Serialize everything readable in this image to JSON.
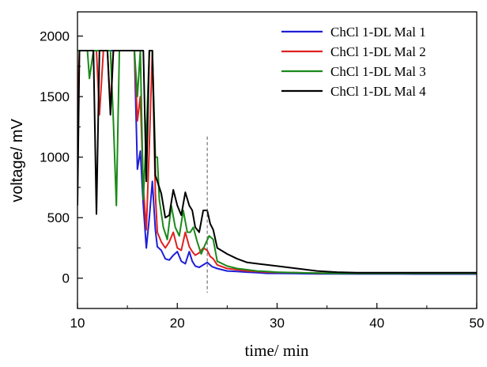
{
  "chart_data": {
    "type": "line",
    "title": "",
    "xlabel": "time/ min",
    "ylabel": "voltage/ mV",
    "xlim": [
      10,
      50
    ],
    "ylim": [
      -250,
      2200
    ],
    "xticks": [
      10,
      20,
      30,
      40,
      50
    ],
    "xtick_labels": [
      "10",
      "20",
      "30",
      "40",
      "50"
    ],
    "yticks": [
      0,
      500,
      1000,
      1500,
      2000
    ],
    "ytick_labels": [
      "0",
      "500",
      "1000",
      "1500",
      "2000"
    ],
    "grid": false,
    "legend": "top-right",
    "reference_line": {
      "x": 23,
      "y_from": -120,
      "y_to": 1170,
      "style": "dashed"
    },
    "series": [
      {
        "name": "ChCl 1-DL Mal 1",
        "color": "#1f1fd6",
        "x": [
          10,
          10.3,
          11.2,
          11.6,
          11.9,
          12.2,
          12.6,
          13.0,
          13.3,
          13.6,
          13.9,
          14.2,
          14.6,
          15.2,
          15.7,
          16.0,
          16.3,
          16.6,
          16.9,
          17.2,
          17.5,
          17.8,
          18.0,
          18.4,
          18.8,
          19.2,
          19.6,
          20.0,
          20.4,
          20.8,
          21.2,
          21.5,
          21.8,
          22.2,
          22.6,
          23.0,
          23.5,
          24,
          25,
          26,
          27,
          28,
          29,
          30,
          32,
          34,
          36,
          38,
          40,
          42,
          44,
          46,
          48,
          50
        ],
        "y": [
          1880,
          1880,
          1880,
          1880,
          1880,
          1880,
          1880,
          1880,
          1880,
          1880,
          1880,
          1880,
          1880,
          1880,
          1880,
          900,
          1050,
          600,
          250,
          500,
          800,
          400,
          260,
          230,
          160,
          150,
          190,
          220,
          140,
          120,
          220,
          140,
          100,
          90,
          110,
          130,
          95,
          80,
          60,
          55,
          50,
          45,
          40,
          40,
          38,
          36,
          36,
          35,
          35,
          35,
          34,
          34,
          34,
          34
        ]
      },
      {
        "name": "ChCl 1-DL Mal 2",
        "color": "#e02020",
        "x": [
          10,
          10.2,
          10.6,
          11.2,
          11.6,
          11.9,
          12.2,
          12.6,
          13.0,
          13.3,
          13.6,
          13.9,
          14.2,
          14.6,
          15.2,
          15.7,
          16.0,
          16.3,
          16.6,
          16.9,
          17.2,
          17.5,
          17.8,
          18.0,
          18.4,
          18.8,
          19.2,
          19.6,
          20.0,
          20.4,
          20.8,
          21.2,
          21.5,
          21.8,
          22.2,
          22.6,
          23.0,
          23.3,
          23.6,
          24,
          25,
          26,
          27,
          28,
          29,
          30,
          32,
          34,
          36,
          38,
          40,
          42,
          44,
          46,
          48,
          50
        ],
        "y": [
          1380,
          1880,
          1880,
          1880,
          1880,
          1880,
          1350,
          1880,
          1880,
          1400,
          1880,
          1880,
          1880,
          1880,
          1880,
          1880,
          1300,
          1500,
          750,
          400,
          1100,
          1880,
          700,
          380,
          300,
          250,
          300,
          380,
          250,
          230,
          380,
          260,
          220,
          190,
          210,
          250,
          230,
          180,
          160,
          110,
          80,
          70,
          60,
          55,
          50,
          48,
          45,
          42,
          42,
          40,
          40,
          40,
          40,
          40,
          40,
          40
        ]
      },
      {
        "name": "ChCl 1-DL Mal 3",
        "color": "#1a8a1a",
        "x": [
          10,
          10.2,
          10.6,
          11.0,
          11.2,
          11.6,
          11.9,
          12.2,
          12.6,
          13.0,
          13.3,
          13.6,
          13.9,
          14.2,
          14.6,
          15.2,
          15.7,
          16.0,
          16.3,
          16.6,
          16.9,
          17.2,
          17.5,
          17.8,
          18.0,
          18.2,
          18.6,
          19.0,
          19.4,
          19.8,
          20.2,
          20.6,
          21.0,
          21.3,
          21.6,
          22.0,
          22.4,
          22.8,
          23.2,
          23.6,
          24,
          25,
          26,
          27,
          28,
          29,
          30,
          32,
          34,
          36,
          38,
          40,
          42,
          44,
          46,
          48,
          50
        ],
        "y": [
          1880,
          1880,
          1880,
          1880,
          1650,
          1880,
          1880,
          1880,
          1880,
          1880,
          1880,
          1300,
          600,
          1880,
          1880,
          1880,
          1880,
          1500,
          1880,
          650,
          1200,
          1880,
          1880,
          1000,
          1000,
          650,
          420,
          320,
          600,
          420,
          350,
          560,
          380,
          380,
          420,
          300,
          200,
          280,
          350,
          320,
          140,
          100,
          80,
          70,
          60,
          55,
          50,
          45,
          42,
          40,
          40,
          40,
          40,
          40,
          40,
          40,
          40
        ]
      },
      {
        "name": "ChCl 1-DL Mal 4",
        "color": "#000000",
        "x": [
          10,
          10.2,
          10.6,
          11.2,
          11.6,
          11.9,
          12.2,
          12.6,
          13.0,
          13.3,
          13.6,
          13.9,
          14.2,
          14.6,
          15.2,
          15.7,
          16.0,
          16.3,
          16.6,
          16.9,
          17.2,
          17.5,
          17.8,
          18.0,
          18.4,
          18.8,
          19.2,
          19.6,
          20.0,
          20.4,
          20.8,
          21.2,
          21.5,
          21.8,
          22.2,
          22.6,
          23.0,
          23.3,
          23.6,
          24,
          25,
          26,
          27,
          28,
          29,
          30,
          32,
          34,
          36,
          38,
          40,
          42,
          44,
          46,
          48,
          50
        ],
        "y": [
          600,
          1880,
          1880,
          1880,
          1880,
          530,
          1880,
          1880,
          1880,
          1350,
          1880,
          1880,
          1880,
          1880,
          1880,
          1880,
          1880,
          1880,
          1880,
          800,
          1880,
          1880,
          850,
          800,
          700,
          500,
          520,
          730,
          600,
          520,
          710,
          600,
          560,
          420,
          380,
          560,
          560,
          450,
          400,
          250,
          200,
          160,
          130,
          120,
          110,
          100,
          80,
          60,
          50,
          45,
          45,
          45,
          45,
          45,
          45,
          45
        ]
      }
    ]
  }
}
